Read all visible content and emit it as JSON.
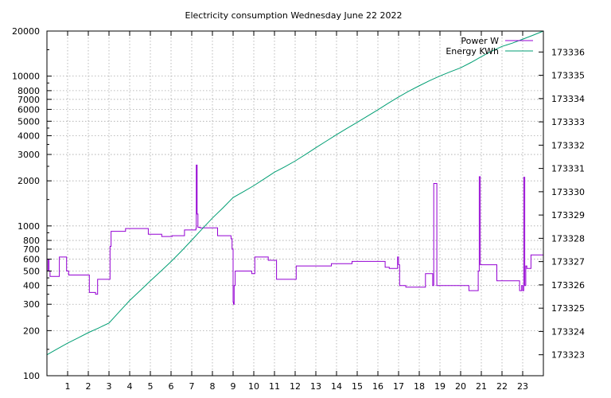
{
  "chart_data": {
    "type": "line",
    "title": "Electricity consumption Wednesday June 22 2022",
    "xlim": [
      0,
      24
    ],
    "x_ticks": [
      "1",
      "2",
      "3",
      "4",
      "5",
      "6",
      "7",
      "8",
      "9",
      "10",
      "11",
      "12",
      "13",
      "14",
      "15",
      "16",
      "17",
      "18",
      "19",
      "20",
      "21",
      "22",
      "23"
    ],
    "y_left": {
      "scale": "log",
      "range": [
        100,
        20000
      ],
      "ticks": [
        "100",
        "200",
        "300",
        "400",
        "500",
        "600",
        "700",
        "800",
        "1000",
        "2000",
        "3000",
        "4000",
        "5000",
        "6000",
        "7000",
        "8000",
        "10000",
        "20000"
      ]
    },
    "y_right": {
      "scale": "linear",
      "range": [
        173322.1,
        173336.9
      ],
      "ticks": [
        "173323",
        "173324",
        "173325",
        "173326",
        "173327",
        "173328",
        "173329",
        "173330",
        "173331",
        "173332",
        "173333",
        "173334",
        "173335",
        "173336"
      ]
    },
    "grid": true,
    "legend_position": "top-right",
    "series": [
      {
        "name": "Power W",
        "axis": "left",
        "step": true,
        "color": "#9400d3",
        "x": [
          0.0,
          0.05,
          0.1,
          0.15,
          0.6,
          0.95,
          1.05,
          2.0,
          2.05,
          2.35,
          2.45,
          3.0,
          3.05,
          3.1,
          3.8,
          4.9,
          5.55,
          6.05,
          6.65,
          7.2,
          7.22,
          7.26,
          7.3,
          7.4,
          8.25,
          8.9,
          8.95,
          9.0,
          9.02,
          9.05,
          9.1,
          9.25,
          9.9,
          10.05,
          10.7,
          11.1,
          11.9,
          12.05,
          12.8,
          13.75,
          14.75,
          16.35,
          16.55,
          16.95,
          17.0,
          17.05,
          17.1,
          17.35,
          18.3,
          18.6,
          18.65,
          18.7,
          18.85,
          20.0,
          20.4,
          20.85,
          20.9,
          20.95,
          21.4,
          21.75,
          22.85,
          22.95,
          23.0,
          23.05,
          23.1,
          23.15,
          23.2,
          23.4,
          23.85,
          24.0
        ],
        "values": [
          500,
          600,
          500,
          460,
          620,
          500,
          470,
          470,
          360,
          350,
          440,
          440,
          730,
          920,
          960,
          880,
          850,
          860,
          940,
          960,
          2550,
          1200,
          980,
          970,
          860,
          820,
          700,
          310,
          300,
          400,
          500,
          500,
          480,
          620,
          590,
          440,
          440,
          540,
          540,
          560,
          580,
          530,
          520,
          620,
          550,
          400,
          400,
          390,
          480,
          480,
          400,
          1920,
          400,
          400,
          370,
          500,
          2130,
          550,
          550,
          430,
          370,
          400,
          370,
          2110,
          400,
          540,
          520,
          640,
          640,
          600
        ]
      },
      {
        "name": "Energy KWh",
        "axis": "right",
        "step": false,
        "color": "#009e73",
        "x": [
          0.0,
          0.5,
          1.0,
          1.5,
          2.0,
          2.5,
          3.0,
          3.5,
          4.0,
          4.5,
          5.0,
          5.5,
          6.0,
          6.5,
          7.0,
          7.5,
          8.0,
          8.5,
          9.0,
          9.5,
          10.0,
          10.5,
          11.0,
          11.5,
          12.0,
          12.5,
          13.0,
          13.5,
          14.0,
          14.5,
          15.0,
          15.5,
          16.0,
          16.5,
          17.0,
          17.5,
          18.0,
          18.5,
          19.0,
          19.5,
          20.0,
          20.5,
          21.0,
          21.5,
          22.0,
          22.5,
          23.0,
          23.5,
          24.0
        ],
        "values": [
          173323.0,
          173323.25,
          173323.5,
          173323.72,
          173323.95,
          173324.15,
          173324.36,
          173324.85,
          173325.33,
          173325.75,
          173326.17,
          173326.58,
          173327.0,
          173327.45,
          173327.92,
          173328.4,
          173328.87,
          173329.3,
          173329.75,
          173330.0,
          173330.26,
          173330.55,
          173330.84,
          173331.07,
          173331.32,
          173331.6,
          173331.89,
          173332.17,
          173332.45,
          173332.72,
          173332.98,
          173333.25,
          173333.52,
          173333.8,
          173334.07,
          173334.32,
          173334.55,
          173334.77,
          173334.97,
          173335.15,
          173335.32,
          173335.55,
          173335.8,
          173336.04,
          173336.24,
          173336.38,
          173336.55,
          173336.72,
          173336.9
        ]
      }
    ]
  }
}
